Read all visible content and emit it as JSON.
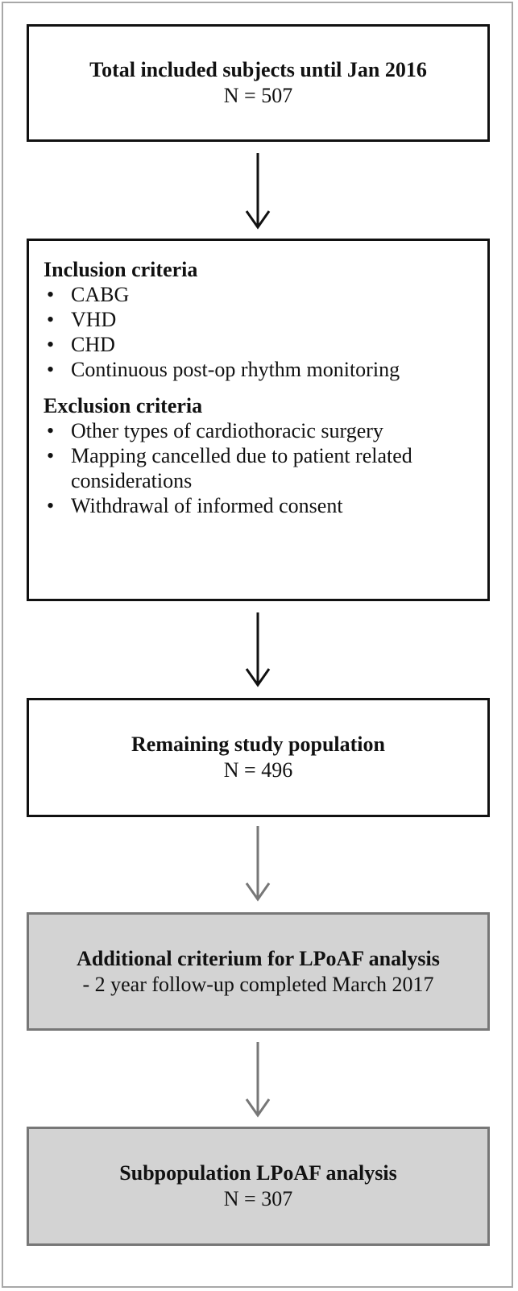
{
  "nodes": [
    {
      "title": "Total included subjects until Jan 2016",
      "text": "N = 507"
    },
    {
      "sections": [
        {
          "title": "Inclusion criteria",
          "items": [
            "CABG",
            "VHD",
            "CHD",
            "Continuous post-op rhythm monitoring"
          ]
        },
        {
          "title": "Exclusion criteria",
          "items": [
            "Other types of cardiothoracic surgery",
            "Mapping cancelled due to patient related considerations",
            "Withdrawal of informed consent"
          ]
        }
      ]
    },
    {
      "title": "Remaining study population",
      "text": "N = 496"
    },
    {
      "title": "Additional criterium for LPoAF analysis",
      "text": "- 2 year follow-up completed March 2017"
    },
    {
      "title": "Subpopulation LPoAF analysis",
      "text": "N = 307"
    }
  ]
}
